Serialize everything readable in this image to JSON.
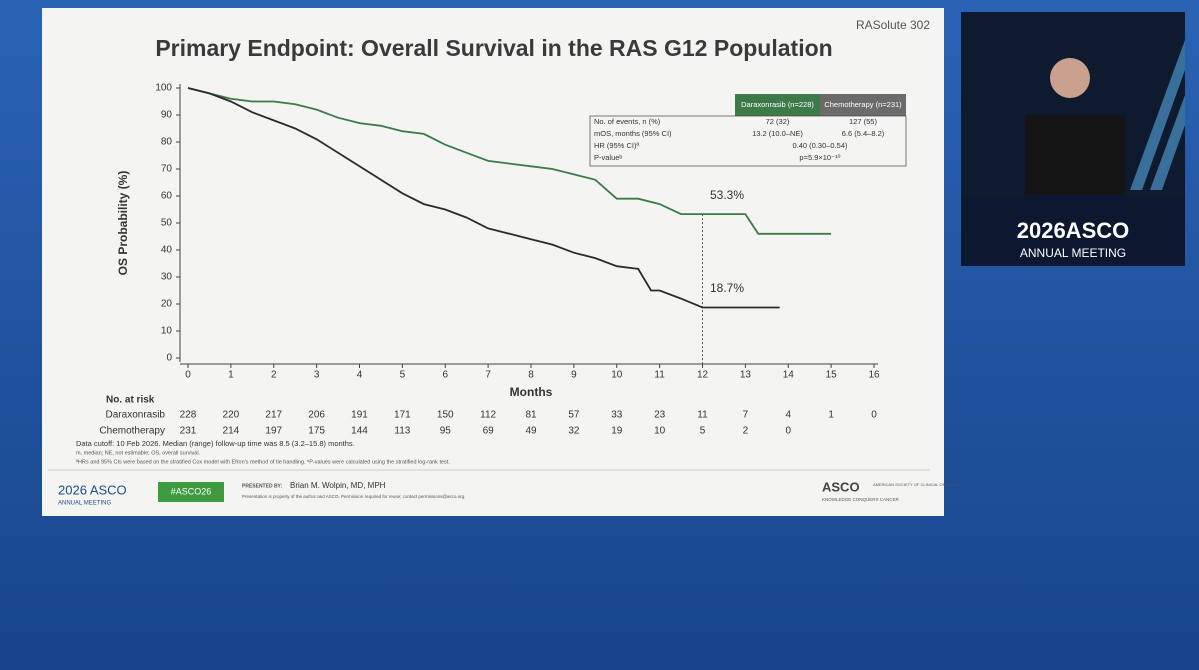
{
  "chart_data": {
    "type": "line",
    "title": "Primary Endpoint: Overall Survival in the RAS G12 Population",
    "x_label": "Months",
    "y_label": "OS Probability (%)",
    "xlim": [
      0,
      16
    ],
    "ylim": [
      0,
      100
    ],
    "xticks": [
      0,
      1,
      2,
      3,
      4,
      5,
      6,
      7,
      8,
      9,
      10,
      11,
      12,
      13,
      14,
      15,
      16
    ],
    "yticks": [
      0,
      10,
      20,
      30,
      40,
      50,
      60,
      70,
      80,
      90,
      100
    ],
    "series": [
      {
        "name": "Daraxonrasib",
        "color": "#3d7a4a",
        "x": [
          0,
          0.5,
          1,
          1.5,
          2,
          2.5,
          3,
          3.5,
          4,
          4.5,
          5,
          5.5,
          6,
          6.5,
          7,
          7.5,
          8,
          8.5,
          9,
          9.5,
          10,
          10.5,
          11,
          11.5,
          12,
          13,
          13.3,
          14,
          15
        ],
        "values": [
          100,
          98,
          96,
          95,
          95,
          94,
          92,
          89,
          87,
          86,
          84,
          83,
          79,
          76,
          73,
          72,
          71,
          70,
          68,
          66,
          59,
          59,
          57,
          53.3,
          53.3,
          53.3,
          46,
          46,
          46
        ]
      },
      {
        "name": "Chemotherapy",
        "color": "#2b2b2b",
        "x": [
          0,
          0.5,
          1,
          1.5,
          2,
          2.5,
          3,
          3.5,
          4,
          4.5,
          5,
          5.5,
          6,
          6.5,
          7,
          7.5,
          8,
          8.5,
          9,
          9.5,
          10,
          10.5,
          10.8,
          11,
          11.5,
          12,
          13,
          13.8
        ],
        "values": [
          100,
          98,
          95,
          91,
          88,
          85,
          81,
          76,
          71,
          66,
          61,
          57,
          55,
          52,
          48,
          46,
          44,
          42,
          39,
          37,
          34,
          33,
          25,
          25,
          22,
          18.7,
          18.7,
          18.7
        ]
      }
    ],
    "annotations": [
      "53.3%",
      "18.7%"
    ],
    "summary_table": {
      "header": [
        "Daraxonrasib (n=228)",
        "Chemotherapy (n=231)"
      ],
      "rows": [
        [
          "No. of events, n (%)",
          "72 (32)",
          "127 (55)"
        ],
        [
          "mOS, months (95% CI)",
          "13.2 (10.0–NE)",
          "6.6 (5.4–8.2)"
        ],
        [
          "HR (95% CI)ª",
          "0.40 (0.30–0.54)"
        ],
        [
          "P-valueᵇ",
          "p=5.9×10⁻¹⁰"
        ]
      ]
    }
  },
  "risk_table": {
    "title": "No. at risk",
    "rows": [
      {
        "name": "Daraxonrasib",
        "values": [
          228,
          220,
          217,
          206,
          191,
          171,
          150,
          112,
          81,
          57,
          33,
          23,
          11,
          7,
          4,
          1,
          0
        ]
      },
      {
        "name": "Chemotherapy",
        "values": [
          231,
          214,
          197,
          175,
          144,
          113,
          95,
          69,
          49,
          32,
          19,
          10,
          5,
          2,
          0
        ]
      }
    ]
  },
  "footnotes": [
    "Data cutoff: 10 Feb 2026. Median (range) follow-up time was 8.5 (3.2–15.8) months.",
    "m, median; NE, not estimable; OS, overall survival.",
    "ªHRs and 95% CIs were based on the stratified Cox model with Efron's method of tie handling. ᵇP-values were calculated using the stratified log-rank test."
  ],
  "slide": {
    "trial": "RASolute 302",
    "meeting": "2026 ASCO",
    "meeting_sub": "ANNUAL MEETING",
    "hashtag": "#ASCO26",
    "presented_by": "PRESENTED BY:",
    "presenter": "Brian M. Wolpin, MD, MPH",
    "notice": "Presentation is property of the author and ASCO. Permission required for reuse; contact permissions@asco.org.",
    "org": "ASCO",
    "org_sub": "AMERICAN SOCIETY OF CLINICAL ONCOLOGY",
    "org_tag": "KNOWLEDGE CONQUERS CANCER"
  },
  "video": {
    "meeting": "2026ASCO",
    "meeting_sub": "ANNUAL MEETING"
  }
}
